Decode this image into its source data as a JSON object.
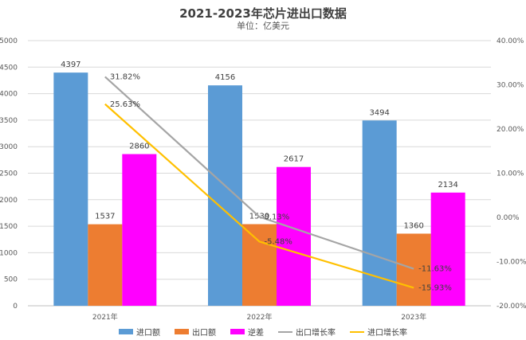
{
  "chart_data": {
    "type": "bar",
    "title": "2021-2023年芯片进出口数据",
    "subtitle": "单位：亿美元",
    "categories": [
      "2021年",
      "2022年",
      "2023年"
    ],
    "series": [
      {
        "name": "进口额",
        "kind": "bar",
        "axis": "left",
        "color": "#5b9bd5",
        "values": [
          4397,
          4156,
          3494
        ],
        "labels": [
          "4397",
          "4156",
          "3494"
        ]
      },
      {
        "name": "出口额",
        "kind": "bar",
        "axis": "left",
        "color": "#ed7d31",
        "values": [
          1537,
          1539,
          1360
        ],
        "labels": [
          "1537",
          "1539",
          "1360"
        ]
      },
      {
        "name": "逆差",
        "kind": "bar",
        "axis": "left",
        "color": "#ff00ff",
        "values": [
          2860,
          2617,
          2134
        ],
        "labels": [
          "2860",
          "2617",
          "2134"
        ]
      },
      {
        "name": "出口增长率",
        "kind": "line",
        "axis": "right",
        "color": "#a5a5a5",
        "values": [
          31.82,
          0.13,
          -11.63
        ],
        "labels": [
          "31.82%",
          "0.13%",
          "-11.63%"
        ]
      },
      {
        "name": "进口增长率",
        "kind": "line",
        "axis": "right",
        "color": "#ffc000",
        "values": [
          25.63,
          -5.48,
          -15.93
        ],
        "labels": [
          "25.63%",
          "-5.48%",
          "-15.93%"
        ]
      }
    ],
    "y_left": {
      "min": 0,
      "max": 5000,
      "step": 500,
      "ticks": [
        "0",
        "500",
        "1000",
        "1500",
        "2000",
        "2500",
        "3000",
        "3500",
        "4000",
        "4500",
        "5000"
      ]
    },
    "y_right": {
      "min": -20,
      "max": 40,
      "step": 10,
      "ticks": [
        "-20.00%",
        "-10.00%",
        "0.00%",
        "10.00%",
        "20.00%",
        "30.00%",
        "40.00%"
      ]
    },
    "grid": true,
    "legend_position": "bottom"
  }
}
